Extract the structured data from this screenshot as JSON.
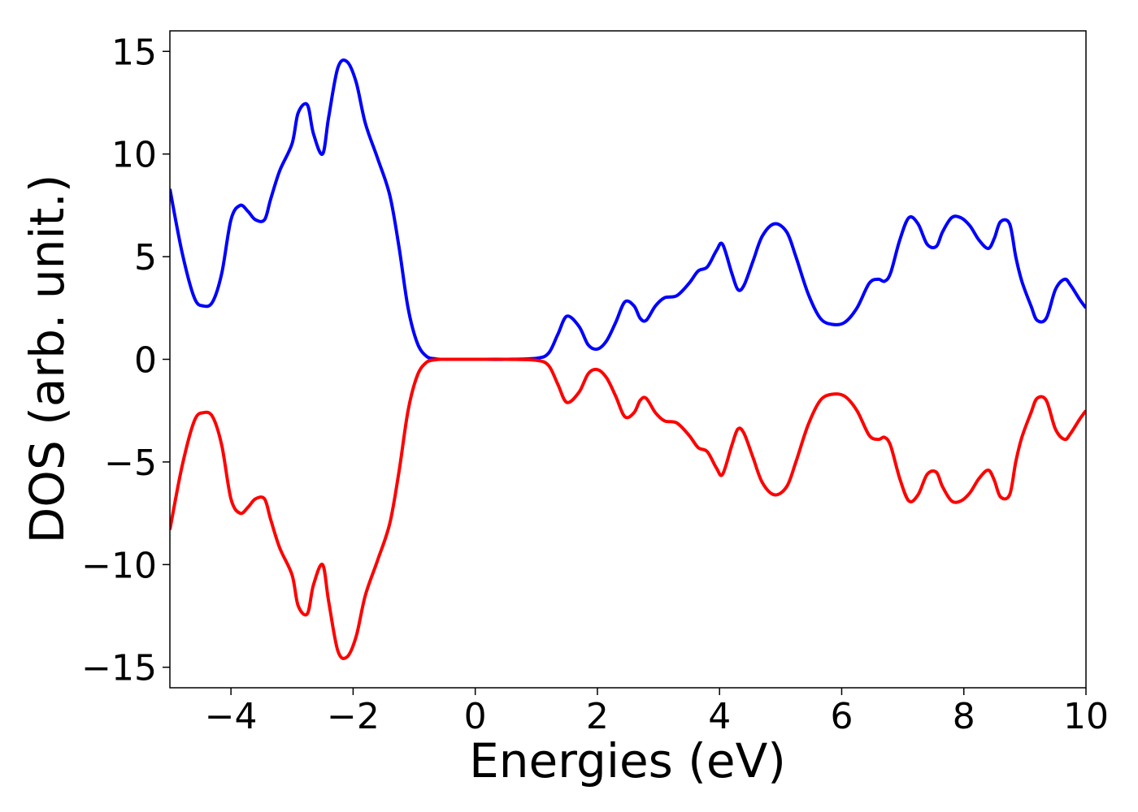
{
  "chart_data": {
    "type": "line",
    "title": "",
    "xlabel": "Energies (eV)",
    "ylabel": "DOS (arb. unit.)",
    "xlim": [
      -5,
      10
    ],
    "ylim": [
      -16,
      16
    ],
    "xticks": [
      -4,
      -2,
      0,
      2,
      4,
      6,
      8,
      10
    ],
    "xtick_labels": [
      "−4",
      "−2",
      "0",
      "2",
      "4",
      "6",
      "8",
      "10"
    ],
    "yticks": [
      15,
      10,
      5,
      0,
      -5,
      -10,
      -15
    ],
    "ytick_labels": [
      "15",
      "10",
      "5",
      "0",
      "−5",
      "−10",
      "−15"
    ],
    "grid": false,
    "legend": "none",
    "series": [
      {
        "color": "#0000ff",
        "x": [
          -5.0,
          -4.8,
          -4.6,
          -4.45,
          -4.3,
          -4.15,
          -4.0,
          -3.85,
          -3.72,
          -3.6,
          -3.45,
          -3.35,
          -3.2,
          -3.0,
          -2.9,
          -2.75,
          -2.65,
          -2.5,
          -2.4,
          -2.25,
          -2.1,
          -1.95,
          -1.8,
          -1.6,
          -1.4,
          -1.25,
          -1.1,
          -0.95,
          -0.8,
          -0.65,
          -0.5,
          0.0,
          0.5,
          1.0,
          1.2,
          1.35,
          1.5,
          1.7,
          1.85,
          2.0,
          2.15,
          2.3,
          2.45,
          2.6,
          2.7,
          2.8,
          2.95,
          3.1,
          3.3,
          3.5,
          3.65,
          3.8,
          3.95,
          4.05,
          4.2,
          4.3,
          4.4,
          4.55,
          4.7,
          4.9,
          5.1,
          5.25,
          5.45,
          5.65,
          5.85,
          6.05,
          6.25,
          6.45,
          6.6,
          6.7,
          6.8,
          6.95,
          7.1,
          7.25,
          7.4,
          7.55,
          7.65,
          7.8,
          7.95,
          8.1,
          8.25,
          8.4,
          8.5,
          8.6,
          8.75,
          8.85,
          8.95,
          9.1,
          9.2,
          9.35,
          9.5,
          9.65,
          9.75,
          9.9,
          10.0
        ],
        "y": [
          8.3,
          5.2,
          3.0,
          2.6,
          2.8,
          4.2,
          6.8,
          7.5,
          7.2,
          6.8,
          6.8,
          7.8,
          9.2,
          10.5,
          12.0,
          12.4,
          11.0,
          10.0,
          11.8,
          14.2,
          14.5,
          13.5,
          11.5,
          9.8,
          8.0,
          5.5,
          2.5,
          0.8,
          0.15,
          0.02,
          0.0,
          0.0,
          0.0,
          0.05,
          0.3,
          1.2,
          2.1,
          1.6,
          0.7,
          0.5,
          0.9,
          1.8,
          2.8,
          2.6,
          2.0,
          1.9,
          2.6,
          3.0,
          3.1,
          3.7,
          4.3,
          4.5,
          5.3,
          5.6,
          4.2,
          3.4,
          3.6,
          4.8,
          6.0,
          6.6,
          6.2,
          5.0,
          3.2,
          2.0,
          1.7,
          1.8,
          2.5,
          3.7,
          3.9,
          3.8,
          4.2,
          5.8,
          6.9,
          6.6,
          5.6,
          5.5,
          6.2,
          6.9,
          6.9,
          6.5,
          5.8,
          5.4,
          5.9,
          6.7,
          6.6,
          5.0,
          3.8,
          2.6,
          1.9,
          2.0,
          3.4,
          3.9,
          3.6,
          2.9,
          2.5
        ]
      },
      {
        "color": "#ff0000",
        "x": [
          -5.0,
          -4.8,
          -4.6,
          -4.45,
          -4.3,
          -4.15,
          -4.0,
          -3.85,
          -3.72,
          -3.6,
          -3.45,
          -3.35,
          -3.2,
          -3.0,
          -2.9,
          -2.75,
          -2.65,
          -2.5,
          -2.4,
          -2.25,
          -2.1,
          -1.95,
          -1.8,
          -1.6,
          -1.4,
          -1.25,
          -1.1,
          -0.95,
          -0.8,
          -0.65,
          -0.5,
          0.0,
          0.5,
          1.0,
          1.2,
          1.35,
          1.5,
          1.7,
          1.85,
          2.0,
          2.15,
          2.3,
          2.45,
          2.6,
          2.7,
          2.8,
          2.95,
          3.1,
          3.3,
          3.5,
          3.65,
          3.8,
          3.95,
          4.05,
          4.2,
          4.3,
          4.4,
          4.55,
          4.7,
          4.9,
          5.1,
          5.25,
          5.45,
          5.65,
          5.85,
          6.05,
          6.25,
          6.45,
          6.6,
          6.7,
          6.8,
          6.95,
          7.1,
          7.25,
          7.4,
          7.55,
          7.65,
          7.8,
          7.95,
          8.1,
          8.25,
          8.4,
          8.5,
          8.6,
          8.75,
          8.85,
          8.95,
          9.1,
          9.2,
          9.35,
          9.5,
          9.65,
          9.75,
          9.9,
          10.0
        ],
        "y": [
          -8.3,
          -5.2,
          -3.0,
          -2.6,
          -2.8,
          -4.2,
          -6.8,
          -7.5,
          -7.2,
          -6.8,
          -6.8,
          -7.8,
          -9.2,
          -10.5,
          -12.0,
          -12.4,
          -11.0,
          -10.0,
          -11.8,
          -14.2,
          -14.5,
          -13.5,
          -11.5,
          -9.8,
          -8.0,
          -5.5,
          -2.5,
          -0.8,
          -0.15,
          -0.02,
          0.0,
          0.0,
          0.0,
          -0.05,
          -0.3,
          -1.2,
          -2.1,
          -1.6,
          -0.7,
          -0.5,
          -0.9,
          -1.8,
          -2.8,
          -2.6,
          -2.0,
          -1.9,
          -2.6,
          -3.0,
          -3.1,
          -3.7,
          -4.3,
          -4.5,
          -5.3,
          -5.6,
          -4.2,
          -3.4,
          -3.6,
          -4.8,
          -6.0,
          -6.6,
          -6.2,
          -5.0,
          -3.2,
          -2.0,
          -1.7,
          -1.8,
          -2.5,
          -3.7,
          -3.9,
          -3.8,
          -4.2,
          -5.8,
          -6.9,
          -6.6,
          -5.6,
          -5.5,
          -6.2,
          -6.9,
          -6.9,
          -6.5,
          -5.8,
          -5.4,
          -5.9,
          -6.7,
          -6.6,
          -5.0,
          -3.8,
          -2.6,
          -1.9,
          -2.0,
          -3.4,
          -3.9,
          -3.6,
          -2.9,
          -2.5
        ]
      }
    ]
  }
}
